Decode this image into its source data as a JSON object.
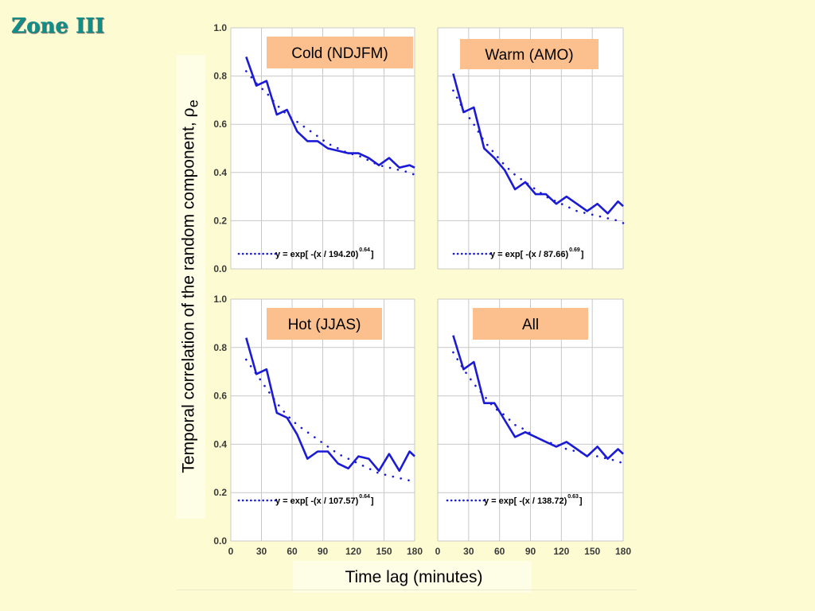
{
  "slide_title": "Zone III",
  "y_axis_label": "Temporal correlation of the random component, ",
  "y_axis_symbol": "ρ",
  "y_axis_subscript": "e",
  "x_axis_label": "Time lag (minutes)",
  "colors": {
    "background": "#fdfbd2",
    "title": "#0f8f8a",
    "series": "#1b1bd6",
    "label_box": "#fbc08d",
    "grid": "#c8c8c8"
  },
  "chart_data": [
    {
      "type": "line",
      "panel_label": "Cold (NDJFM)",
      "x_ticks": [
        0,
        30,
        60,
        90,
        120,
        150,
        180
      ],
      "y_ticks": [
        0.0,
        0.2,
        0.4,
        0.6,
        0.8,
        1.0
      ],
      "y_tick_labels": [
        "0.0",
        "0.2",
        "0.4",
        "0.6",
        "0.8",
        "1.0"
      ],
      "xlim": [
        0,
        180
      ],
      "ylim": [
        0,
        1.0
      ],
      "grid": true,
      "show_x_tick_labels": false,
      "x": [
        15,
        25,
        35,
        45,
        55,
        65,
        75,
        85,
        95,
        105,
        115,
        125,
        135,
        145,
        155,
        165,
        175,
        180
      ],
      "series": [
        {
          "style": "solid",
          "values": [
            0.88,
            0.76,
            0.78,
            0.64,
            0.66,
            0.57,
            0.53,
            0.53,
            0.5,
            0.49,
            0.48,
            0.48,
            0.46,
            0.43,
            0.46,
            0.42,
            0.43,
            0.42
          ]
        },
        {
          "style": "dotted",
          "values": [
            0.82,
            0.77,
            0.73,
            0.68,
            0.64,
            0.61,
            0.58,
            0.55,
            0.52,
            0.5,
            0.48,
            0.47,
            0.45,
            0.43,
            0.42,
            0.41,
            0.4,
            0.39
          ]
        }
      ],
      "legend": {
        "text": "y = exp[ -(x / 194.20)",
        "exponent": "0.64",
        "close": " ]"
      }
    },
    {
      "type": "line",
      "panel_label": "Warm (AMO)",
      "x_ticks": [
        0,
        30,
        60,
        90,
        120,
        150,
        180
      ],
      "y_ticks": [
        0.0,
        0.2,
        0.4,
        0.6,
        0.8,
        1.0
      ],
      "y_tick_labels": [],
      "xlim": [
        0,
        180
      ],
      "ylim": [
        0,
        1.0
      ],
      "grid": true,
      "show_x_tick_labels": false,
      "x": [
        15,
        25,
        35,
        45,
        55,
        65,
        75,
        85,
        95,
        105,
        115,
        125,
        135,
        145,
        155,
        165,
        175,
        180
      ],
      "series": [
        {
          "style": "solid",
          "values": [
            0.81,
            0.65,
            0.67,
            0.5,
            0.46,
            0.41,
            0.33,
            0.36,
            0.31,
            0.31,
            0.27,
            0.3,
            0.27,
            0.24,
            0.27,
            0.23,
            0.28,
            0.26
          ]
        },
        {
          "style": "dotted",
          "values": [
            0.74,
            0.66,
            0.6,
            0.53,
            0.48,
            0.43,
            0.39,
            0.36,
            0.33,
            0.3,
            0.28,
            0.26,
            0.24,
            0.23,
            0.22,
            0.21,
            0.2,
            0.19
          ]
        }
      ],
      "legend": {
        "text": "y = exp[ -(x / 87.66)",
        "exponent": "0.69",
        "close": " ]"
      }
    },
    {
      "type": "line",
      "panel_label": "Hot (JJAS)",
      "x_ticks": [
        0,
        30,
        60,
        90,
        120,
        150,
        180
      ],
      "y_ticks": [
        0.0,
        0.2,
        0.4,
        0.6,
        0.8,
        1.0
      ],
      "y_tick_labels": [
        "0.0",
        "0.2",
        "0.4",
        "0.6",
        "0.8",
        "1.0"
      ],
      "xlim": [
        0,
        180
      ],
      "ylim": [
        0,
        1.0
      ],
      "grid": true,
      "show_x_tick_labels": true,
      "x": [
        15,
        25,
        35,
        45,
        55,
        65,
        75,
        85,
        95,
        105,
        115,
        125,
        135,
        145,
        155,
        165,
        175,
        180
      ],
      "series": [
        {
          "style": "solid",
          "values": [
            0.84,
            0.69,
            0.71,
            0.53,
            0.51,
            0.44,
            0.34,
            0.37,
            0.37,
            0.32,
            0.3,
            0.35,
            0.34,
            0.29,
            0.36,
            0.29,
            0.37,
            0.35
          ]
        },
        {
          "style": "dotted",
          "values": [
            0.75,
            0.69,
            0.63,
            0.57,
            0.52,
            0.48,
            0.45,
            0.42,
            0.39,
            0.36,
            0.34,
            0.32,
            0.3,
            0.28,
            0.27,
            0.26,
            0.25,
            0.24
          ]
        }
      ],
      "legend": {
        "text": "y = exp[ -(x / 107.57)",
        "exponent": "0.64",
        "close": " ]"
      }
    },
    {
      "type": "line",
      "panel_label": "All",
      "x_ticks": [
        0,
        30,
        60,
        90,
        120,
        150,
        180
      ],
      "y_ticks": [
        0.0,
        0.2,
        0.4,
        0.6,
        0.8,
        1.0
      ],
      "y_tick_labels": [],
      "xlim": [
        0,
        180
      ],
      "ylim": [
        0,
        1.0
      ],
      "grid": true,
      "show_x_tick_labels": true,
      "x": [
        15,
        25,
        35,
        45,
        55,
        65,
        75,
        85,
        95,
        105,
        115,
        125,
        135,
        145,
        155,
        165,
        175,
        180
      ],
      "series": [
        {
          "style": "solid",
          "values": [
            0.85,
            0.71,
            0.74,
            0.57,
            0.57,
            0.5,
            0.43,
            0.45,
            0.43,
            0.41,
            0.39,
            0.41,
            0.38,
            0.35,
            0.39,
            0.34,
            0.38,
            0.36
          ]
        },
        {
          "style": "dotted",
          "values": [
            0.78,
            0.71,
            0.65,
            0.6,
            0.55,
            0.52,
            0.48,
            0.46,
            0.43,
            0.41,
            0.4,
            0.38,
            0.37,
            0.36,
            0.35,
            0.34,
            0.33,
            0.32
          ]
        }
      ],
      "legend": {
        "text": "y = exp[ -(x / 138.72)",
        "exponent": "0.63",
        "close": " ]"
      }
    }
  ]
}
